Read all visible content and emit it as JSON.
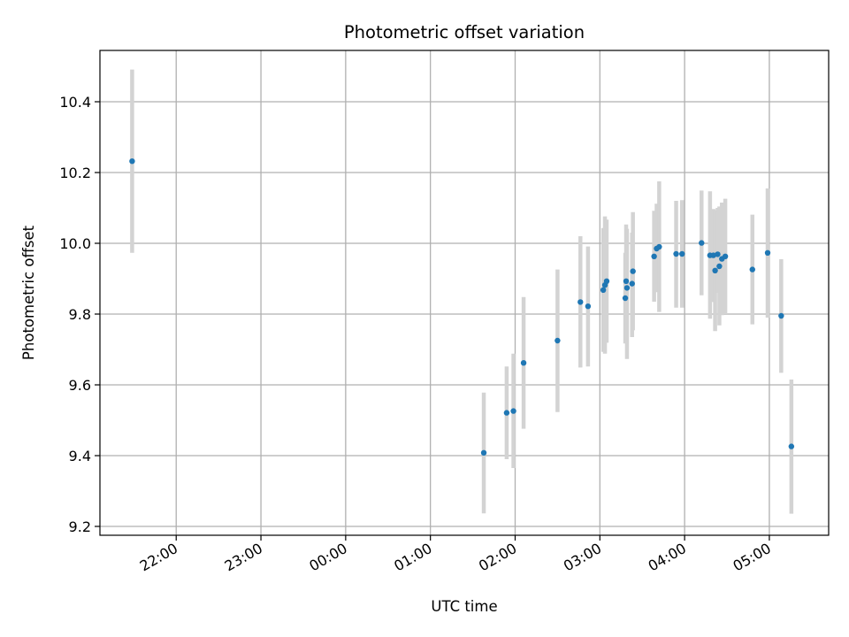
{
  "chart_data": {
    "type": "scatter",
    "title": "Photometric offset variation",
    "xlabel": "UTC time",
    "ylabel": "Photometric offset",
    "x_unit": "hours UTC (times after midnight exceed 24)",
    "xlim": [
      21.1,
      29.7
    ],
    "ylim": [
      9.175,
      10.545
    ],
    "x_ticks": [
      {
        "value": 22,
        "label": "22:00"
      },
      {
        "value": 23,
        "label": "23:00"
      },
      {
        "value": 24,
        "label": "00:00"
      },
      {
        "value": 25,
        "label": "01:00"
      },
      {
        "value": 26,
        "label": "02:00"
      },
      {
        "value": 27,
        "label": "03:00"
      },
      {
        "value": 28,
        "label": "04:00"
      },
      {
        "value": 29,
        "label": "05:00"
      }
    ],
    "y_ticks": [
      {
        "value": 9.2,
        "label": "9.2"
      },
      {
        "value": 9.4,
        "label": "9.4"
      },
      {
        "value": 9.6,
        "label": "9.6"
      },
      {
        "value": 9.8,
        "label": "9.8"
      },
      {
        "value": 10.0,
        "label": "10.0"
      },
      {
        "value": 10.2,
        "label": "10.2"
      },
      {
        "value": 10.4,
        "label": "10.4"
      }
    ],
    "grid": true,
    "legend": "none",
    "marker_color": "#1f77b4",
    "errorbar_color": "#d3d3d3",
    "points": [
      {
        "x": 21.48,
        "y": 10.232,
        "ylo": 9.973,
        "yhi": 10.491
      },
      {
        "x": 25.63,
        "y": 9.408,
        "ylo": 9.237,
        "yhi": 9.578
      },
      {
        "x": 25.9,
        "y": 9.521,
        "ylo": 9.39,
        "yhi": 9.652
      },
      {
        "x": 25.98,
        "y": 9.526,
        "ylo": 9.365,
        "yhi": 9.688
      },
      {
        "x": 26.1,
        "y": 9.662,
        "ylo": 9.476,
        "yhi": 9.848
      },
      {
        "x": 26.5,
        "y": 9.725,
        "ylo": 9.523,
        "yhi": 9.926
      },
      {
        "x": 26.77,
        "y": 9.834,
        "ylo": 9.649,
        "yhi": 10.02
      },
      {
        "x": 26.86,
        "y": 9.822,
        "ylo": 9.652,
        "yhi": 9.991
      },
      {
        "x": 27.04,
        "y": 9.868,
        "ylo": 9.693,
        "yhi": 10.043
      },
      {
        "x": 27.06,
        "y": 9.882,
        "ylo": 9.688,
        "yhi": 10.076
      },
      {
        "x": 27.08,
        "y": 9.893,
        "ylo": 9.719,
        "yhi": 10.067
      },
      {
        "x": 27.3,
        "y": 9.845,
        "ylo": 9.717,
        "yhi": 9.973
      },
      {
        "x": 27.31,
        "y": 9.893,
        "ylo": 9.733,
        "yhi": 10.053
      },
      {
        "x": 27.32,
        "y": 9.874,
        "ylo": 9.673,
        "yhi": 10.041
      },
      {
        "x": 27.38,
        "y": 9.886,
        "ylo": 9.735,
        "yhi": 10.03
      },
      {
        "x": 27.39,
        "y": 9.921,
        "ylo": 9.754,
        "yhi": 10.088
      },
      {
        "x": 27.64,
        "y": 9.963,
        "ylo": 9.835,
        "yhi": 10.092
      },
      {
        "x": 27.67,
        "y": 9.985,
        "ylo": 9.862,
        "yhi": 10.112
      },
      {
        "x": 27.7,
        "y": 9.99,
        "ylo": 9.806,
        "yhi": 10.175
      },
      {
        "x": 27.9,
        "y": 9.97,
        "ylo": 9.818,
        "yhi": 10.12
      },
      {
        "x": 27.97,
        "y": 9.97,
        "ylo": 9.818,
        "yhi": 10.122
      },
      {
        "x": 28.2,
        "y": 10.001,
        "ylo": 9.853,
        "yhi": 10.149
      },
      {
        "x": 28.3,
        "y": 9.966,
        "ylo": 9.787,
        "yhi": 10.147
      },
      {
        "x": 28.34,
        "y": 9.966,
        "ylo": 9.834,
        "yhi": 10.097
      },
      {
        "x": 28.36,
        "y": 9.923,
        "ylo": 9.752,
        "yhi": 10.093
      },
      {
        "x": 28.39,
        "y": 9.969,
        "ylo": 9.86,
        "yhi": 10.1
      },
      {
        "x": 28.41,
        "y": 9.935,
        "ylo": 9.768,
        "yhi": 10.104
      },
      {
        "x": 28.44,
        "y": 9.956,
        "ylo": 9.797,
        "yhi": 10.115
      },
      {
        "x": 28.48,
        "y": 9.963,
        "ylo": 9.8,
        "yhi": 10.126
      },
      {
        "x": 28.8,
        "y": 9.926,
        "ylo": 9.771,
        "yhi": 10.081
      },
      {
        "x": 28.98,
        "y": 9.973,
        "ylo": 9.79,
        "yhi": 10.155
      },
      {
        "x": 29.14,
        "y": 9.795,
        "ylo": 9.634,
        "yhi": 9.955
      },
      {
        "x": 29.26,
        "y": 9.426,
        "ylo": 9.236,
        "yhi": 9.615
      }
    ]
  }
}
